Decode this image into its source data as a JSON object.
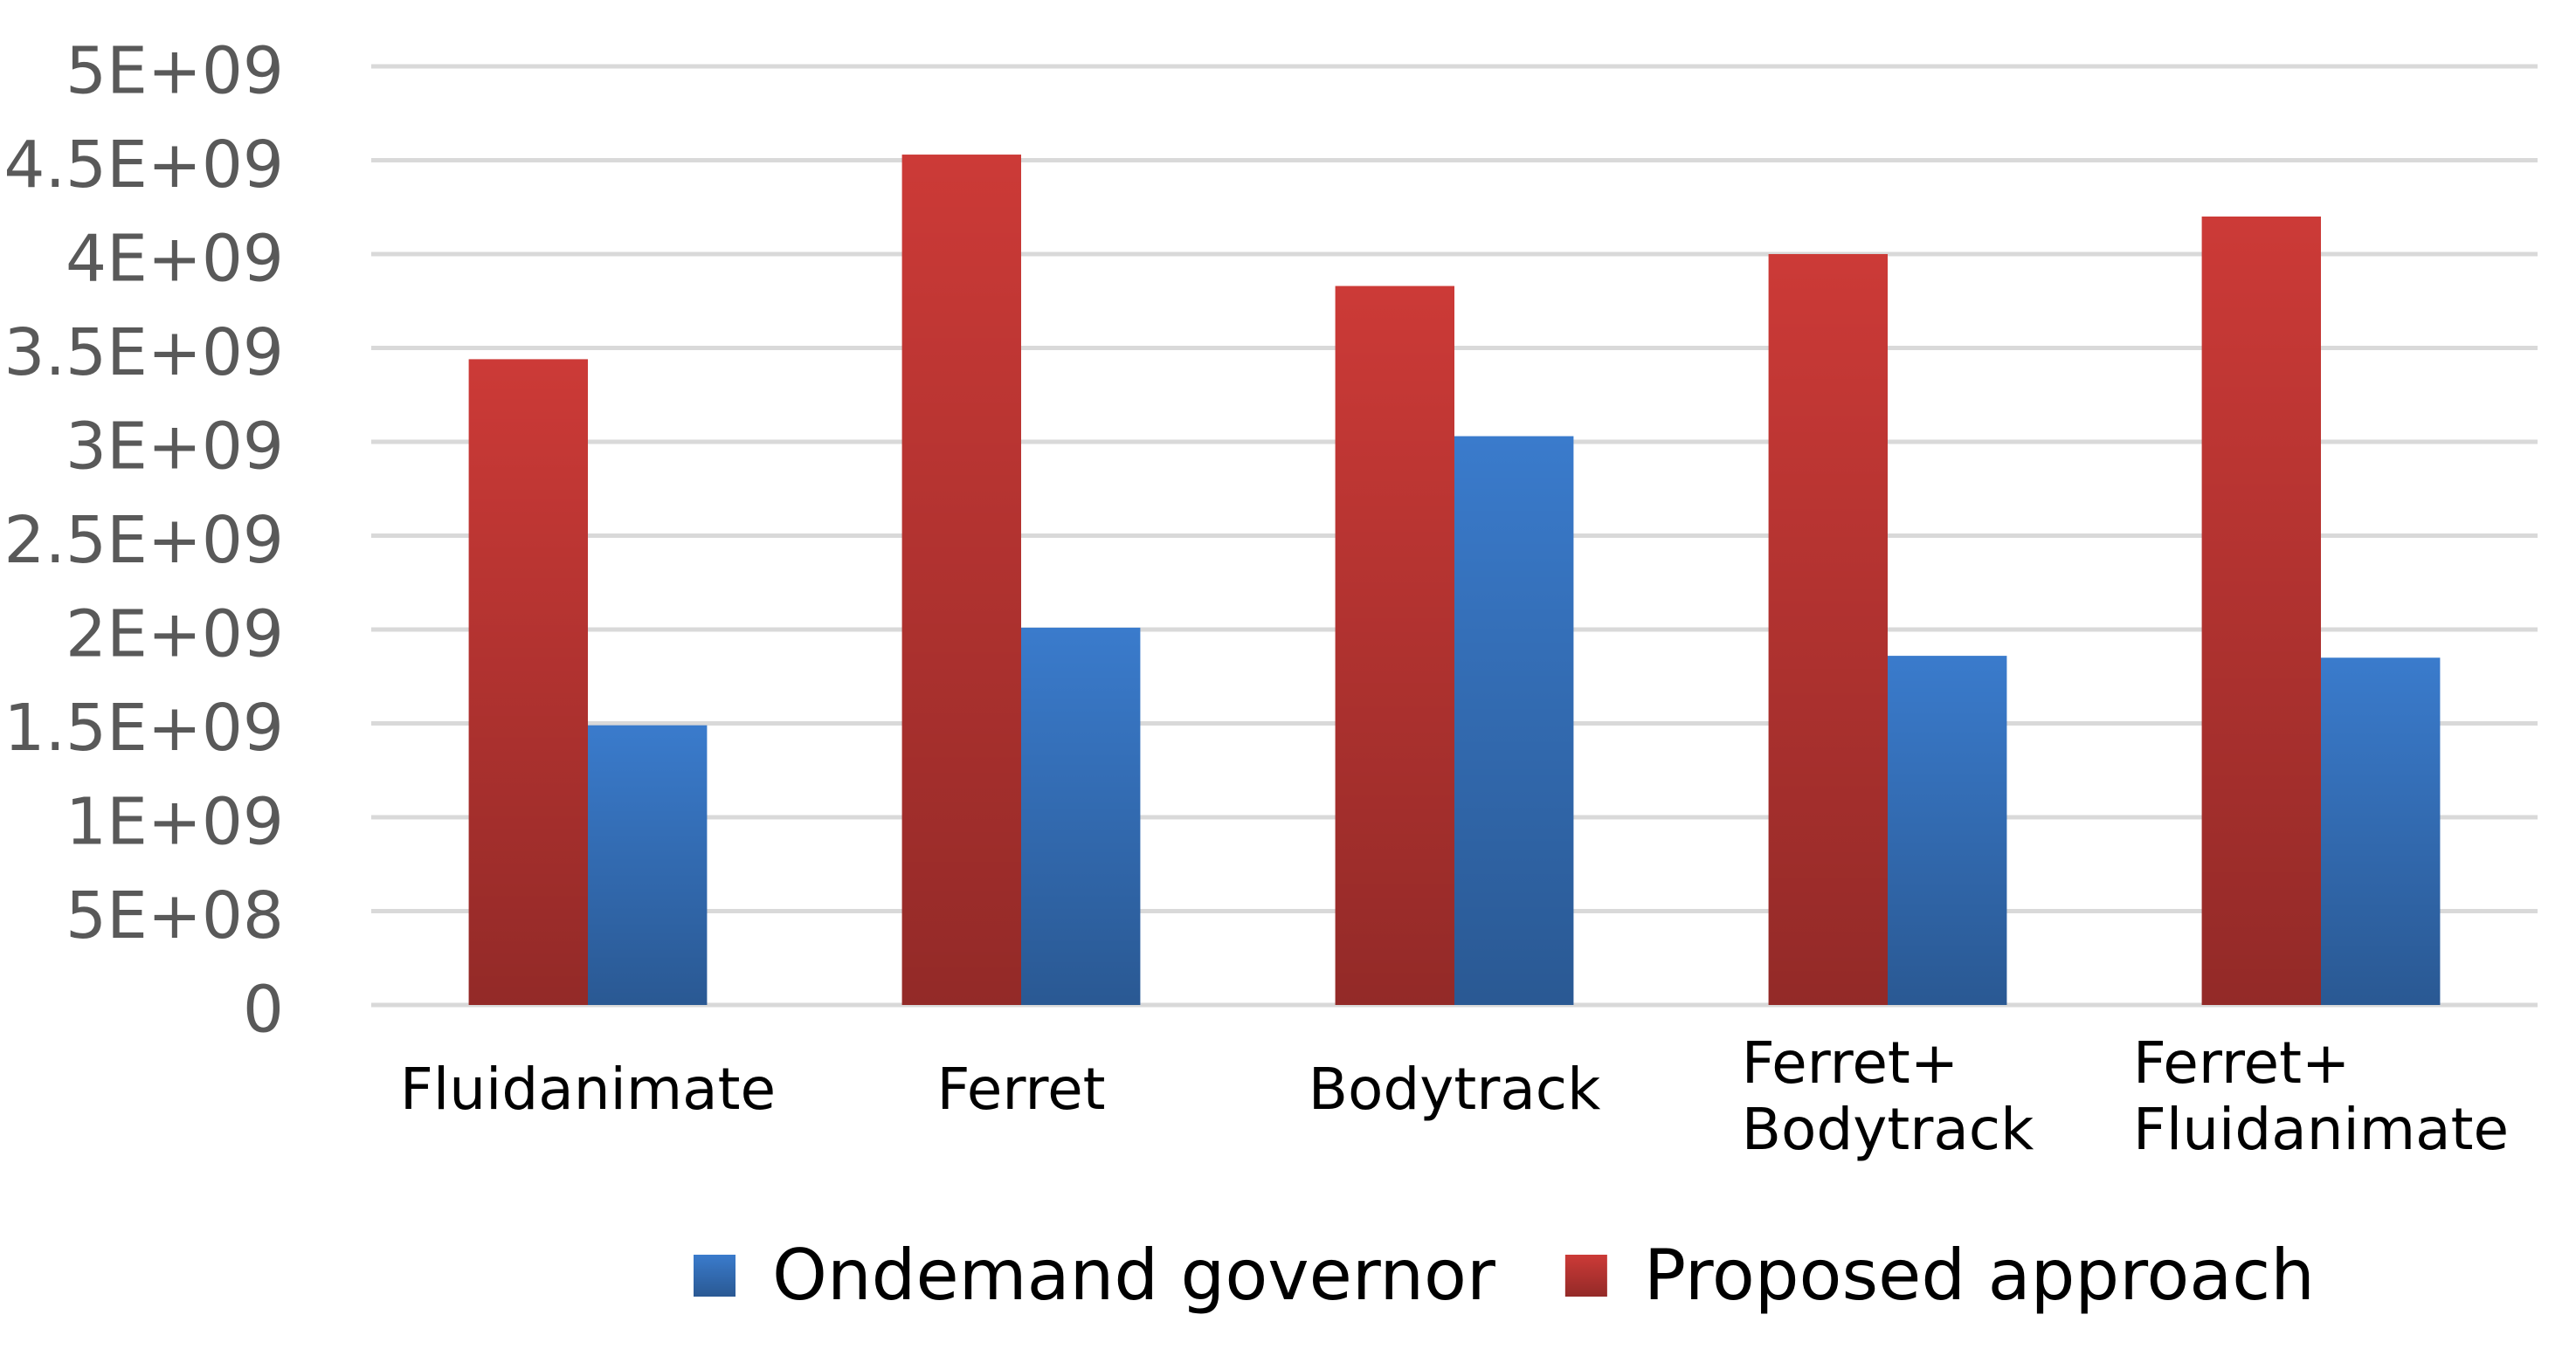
{
  "chart_data": {
    "type": "bar",
    "categories": [
      "Fluidanimate",
      "Ferret",
      "Bodytrack",
      "Ferret+\nBodytrack",
      "Ferret+\nFluidanimate"
    ],
    "series": [
      {
        "name": "Ondemand governor",
        "color": "#3a7bcc",
        "values": [
          1490000000,
          2010000000,
          3030000000,
          1860000000,
          1850000000
        ]
      },
      {
        "name": "Proposed approach",
        "color": "#cc3a37",
        "values": [
          3440000000,
          4530000000,
          3830000000,
          4000000000,
          4200000000
        ]
      }
    ],
    "ylim": [
      0,
      5000000000
    ],
    "yticks": [
      0,
      {
        "value": 500000000,
        "label": "5E+08"
      },
      {
        "value": 1000000000,
        "label": "1E+09"
      },
      {
        "value": 1500000000,
        "label": "1.5E+09"
      },
      {
        "value": 2000000000,
        "label": "2E+09"
      },
      {
        "value": 2500000000,
        "label": "2.5E+09"
      },
      {
        "value": 3000000000,
        "label": "3E+09"
      },
      {
        "value": 3500000000,
        "label": "3.5E+09"
      },
      {
        "value": 4000000000,
        "label": "4E+09"
      },
      {
        "value": 4500000000,
        "label": "4.5E+09"
      },
      {
        "value": 5000000000,
        "label": "5E+09"
      }
    ],
    "grid": true,
    "legend": "bottom"
  }
}
